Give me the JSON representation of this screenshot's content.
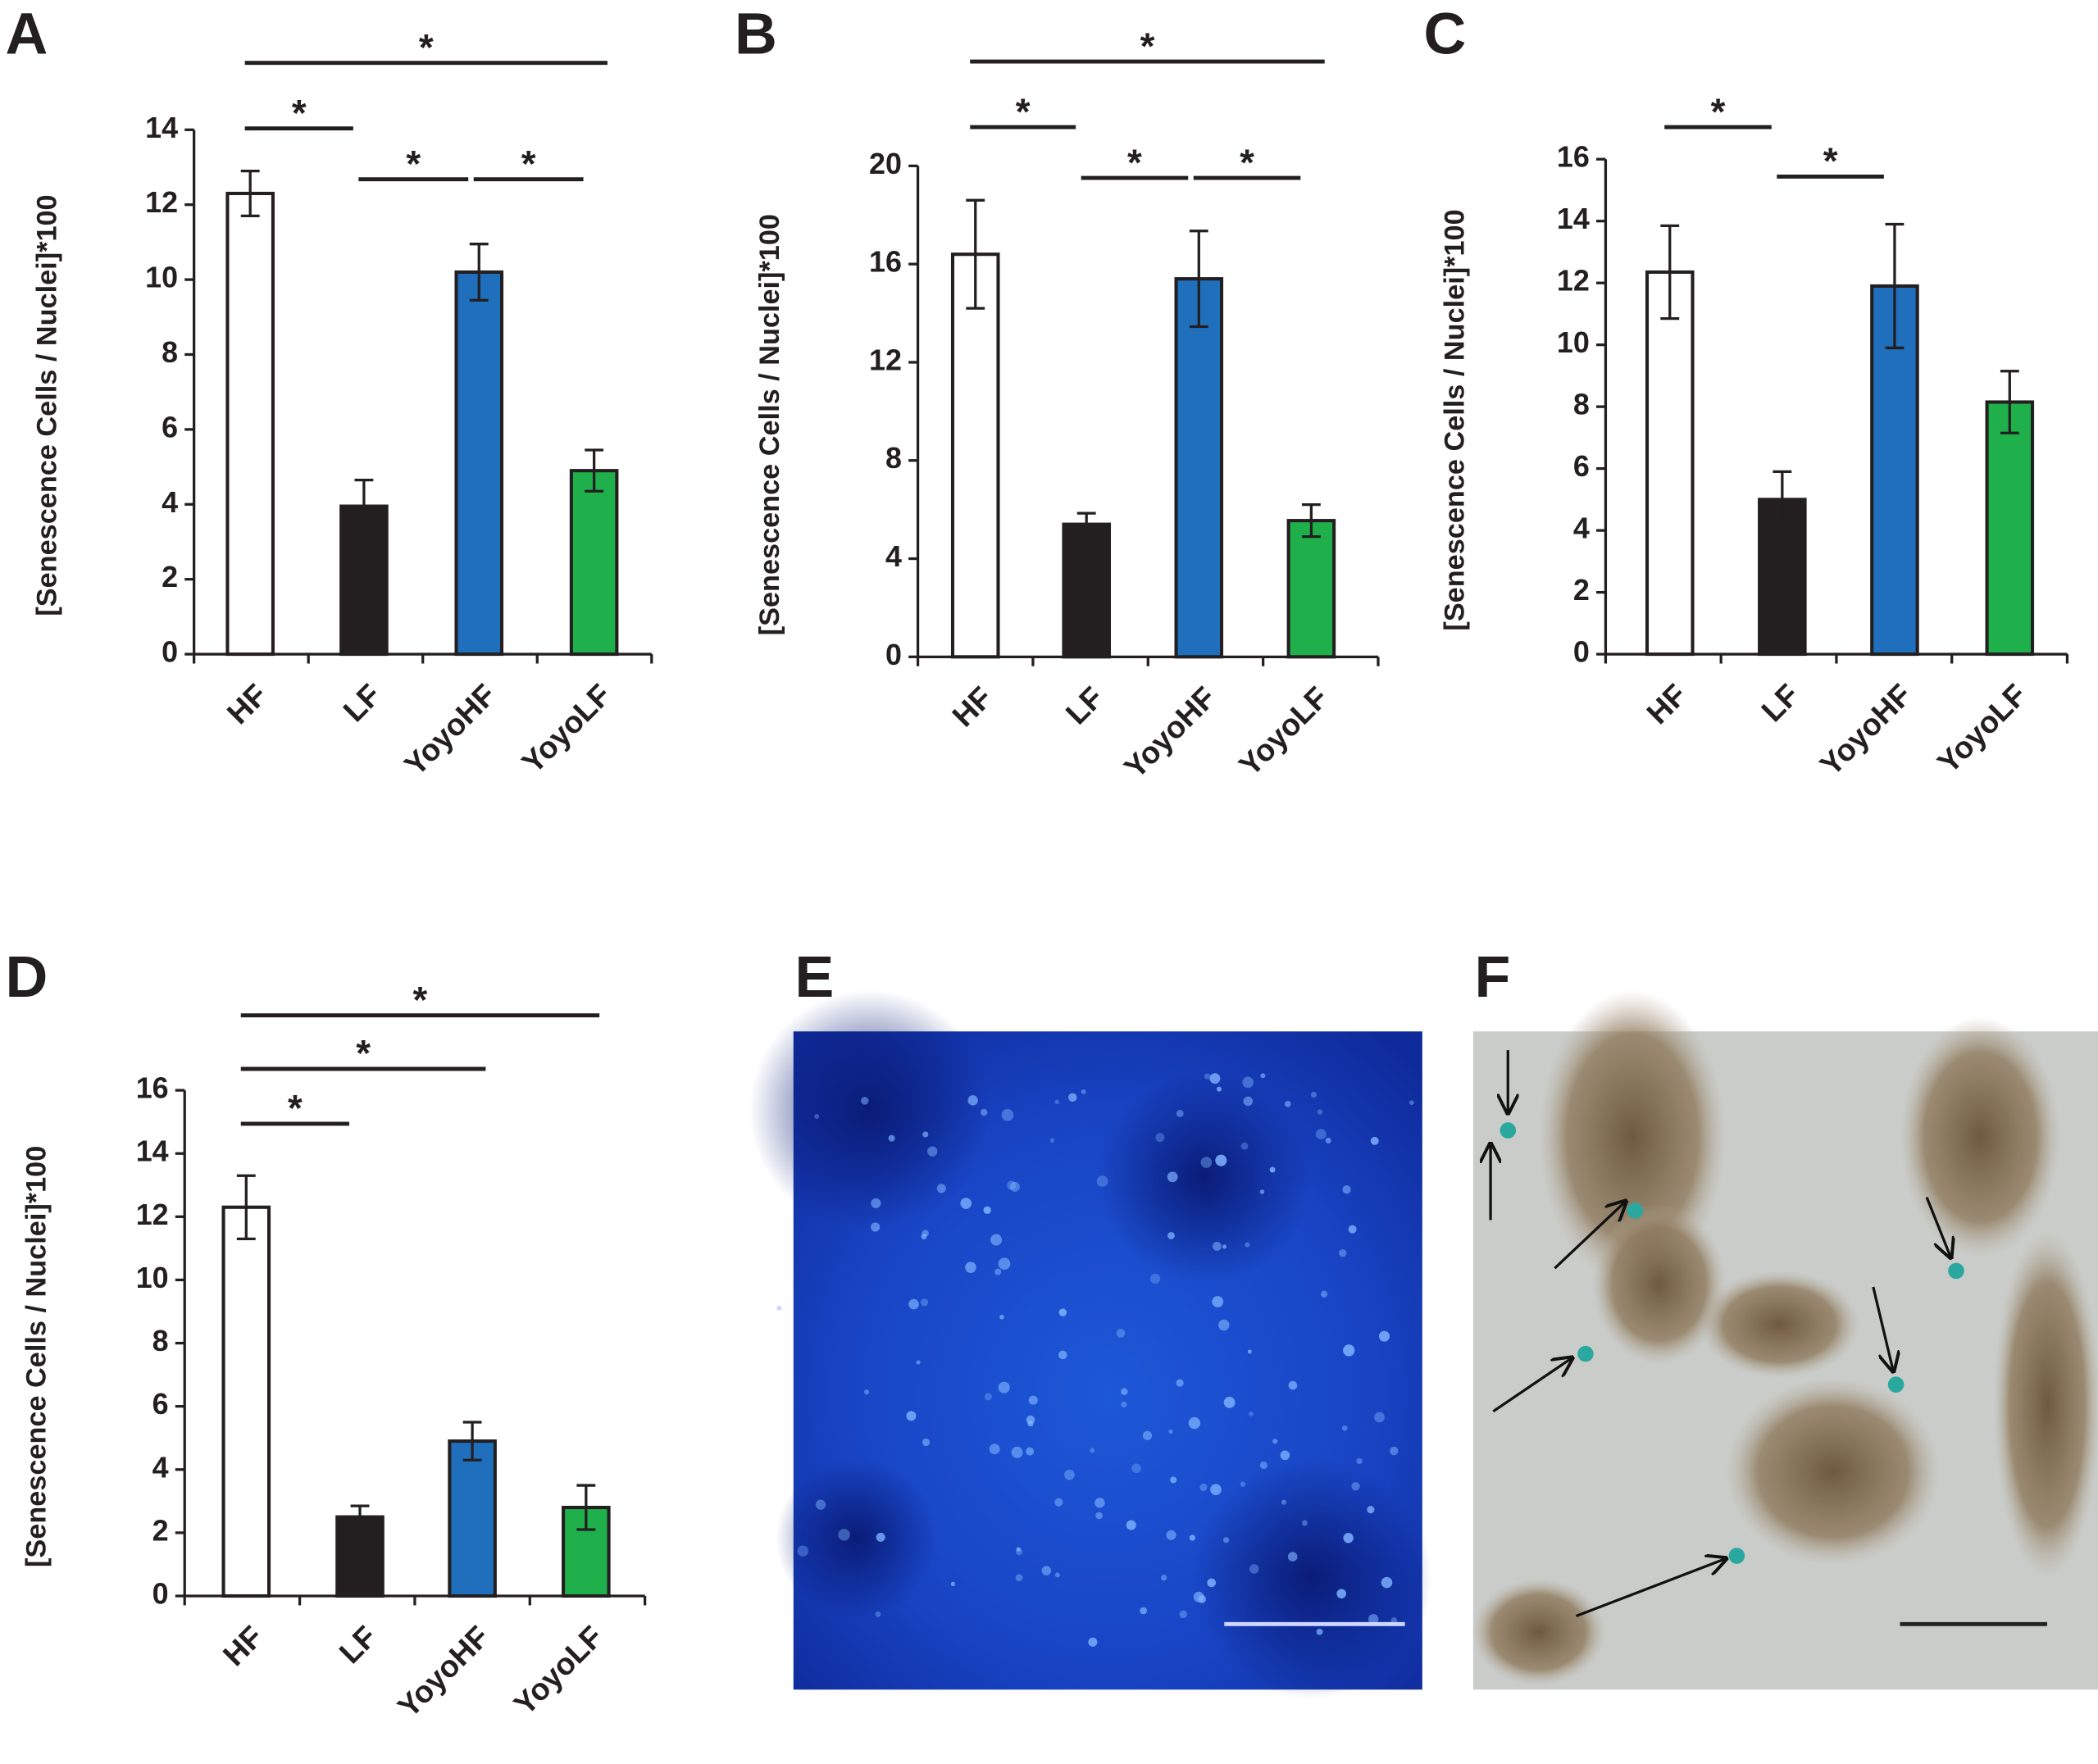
{
  "chart_data": [
    {
      "type": "bar",
      "panel": "A",
      "y_label": "[Senescence Cells / Nuclei]*100",
      "categories": [
        "HF",
        "LF",
        "YoyoHF",
        "YoyoLF"
      ],
      "values": [
        12.3,
        3.95,
        10.2,
        4.9
      ],
      "errors": [
        0.6,
        0.7,
        0.75,
        0.55
      ],
      "colors": [
        "#ffffff",
        "#231f20",
        "#1f6fbd",
        "#1fb04b"
      ],
      "ylim": [
        0,
        14
      ],
      "yticks": [
        0,
        2,
        4,
        6,
        8,
        10,
        12,
        14
      ],
      "significance": [
        {
          "label": "*",
          "between": [
            "HF",
            "YoyoLF"
          ]
        },
        {
          "label": "*",
          "between": [
            "HF",
            "LF"
          ]
        },
        {
          "label": "*",
          "between": [
            "LF",
            "YoyoHF"
          ]
        },
        {
          "label": "*",
          "between": [
            "YoyoHF",
            "YoyoLF"
          ]
        }
      ]
    },
    {
      "type": "bar",
      "panel": "B",
      "y_label": "[Senescence Cells / Nuclei]*100",
      "categories": [
        "HF",
        "LF",
        "YoyoHF",
        "YoyoLF"
      ],
      "values": [
        16.4,
        5.4,
        15.4,
        5.55
      ],
      "errors": [
        2.2,
        0.45,
        1.95,
        0.65
      ],
      "colors": [
        "#ffffff",
        "#231f20",
        "#1f6fbd",
        "#1fb04b"
      ],
      "ylim": [
        0,
        20
      ],
      "yticks": [
        0,
        4,
        8,
        12,
        16,
        20
      ],
      "significance": [
        {
          "label": "*",
          "between": [
            "HF",
            "YoyoLF"
          ]
        },
        {
          "label": "*",
          "between": [
            "HF",
            "LF"
          ]
        },
        {
          "label": "*",
          "between": [
            "LF",
            "YoyoHF"
          ]
        },
        {
          "label": "*",
          "between": [
            "YoyoHF",
            "YoyoLF"
          ]
        }
      ]
    },
    {
      "type": "bar",
      "panel": "C",
      "y_label": "[Senescence Cells / Nuclei]*100",
      "categories": [
        "HF",
        "LF",
        "YoyoHF",
        "YoyoLF"
      ],
      "values": [
        12.35,
        5.0,
        11.9,
        8.15
      ],
      "errors": [
        1.5,
        0.9,
        2.0,
        1.0
      ],
      "colors": [
        "#ffffff",
        "#231f20",
        "#1f6fbd",
        "#1fb04b"
      ],
      "ylim": [
        0,
        16
      ],
      "yticks": [
        0,
        2,
        4,
        6,
        8,
        10,
        12,
        14,
        16
      ],
      "significance": [
        {
          "label": "*",
          "between": [
            "HF",
            "LF"
          ]
        },
        {
          "label": "*",
          "between": [
            "LF",
            "YoyoHF"
          ]
        }
      ]
    },
    {
      "type": "bar",
      "panel": "D",
      "y_label": "[Senescence Cells / Nuclei]*100",
      "categories": [
        "HF",
        "LF",
        "YoyoHF",
        "YoyoLF"
      ],
      "values": [
        12.3,
        2.5,
        4.9,
        2.8
      ],
      "errors": [
        1.0,
        0.35,
        0.6,
        0.7
      ],
      "colors": [
        "#ffffff",
        "#231f20",
        "#1f6fbd",
        "#1fb04b"
      ],
      "ylim": [
        0,
        16
      ],
      "yticks": [
        0,
        2,
        4,
        6,
        8,
        10,
        12,
        14,
        16
      ],
      "significance": [
        {
          "label": "*",
          "between": [
            "HF",
            "YoyoLF"
          ]
        },
        {
          "label": "*",
          "between": [
            "HF",
            "YoyoHF"
          ]
        },
        {
          "label": "*",
          "between": [
            "HF",
            "LF"
          ]
        }
      ]
    }
  ],
  "images": [
    {
      "panel": "E"
    },
    {
      "panel": "F"
    }
  ]
}
